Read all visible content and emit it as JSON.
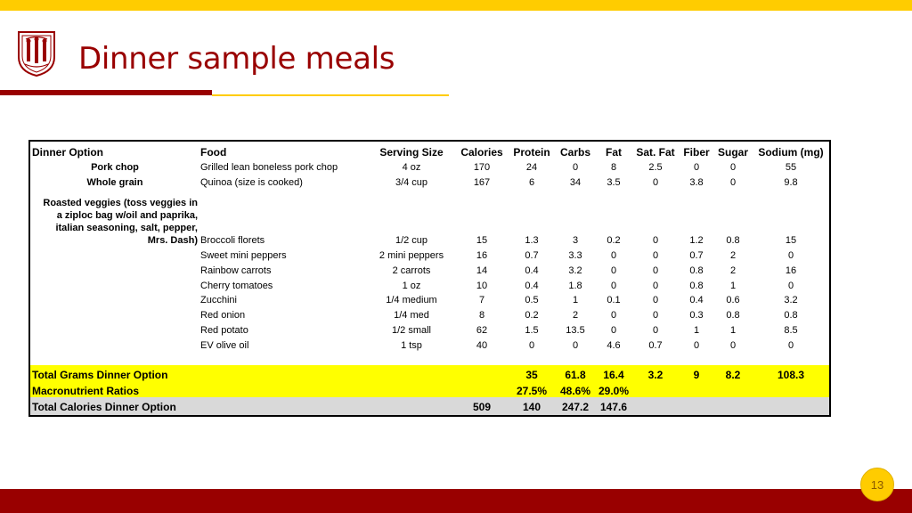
{
  "slide": {
    "title": "Dinner sample meals",
    "page_number": "13",
    "colors": {
      "cardinal": "#990000",
      "gold": "#FFCC00",
      "highlight": "#FFFF00",
      "grey": "#D9D9D9"
    },
    "logo_icon": "university-seal-icon"
  },
  "table": {
    "headers": [
      "Dinner Option",
      "Food",
      "Serving Size",
      "Calories",
      "Protein",
      "Carbs",
      "Fat",
      "Sat. Fat",
      "Fiber",
      "Sugar",
      "Sodium (mg)"
    ],
    "rows": [
      {
        "option": "Pork chop",
        "food": "Grilled lean boneless pork chop",
        "serving": "4 oz",
        "values": [
          "170",
          "24",
          "0",
          "8",
          "2.5",
          "0",
          "0",
          "55"
        ]
      },
      {
        "option": "Whole grain",
        "food": "Quinoa (size is cooked)",
        "serving": "3/4 cup",
        "values": [
          "167",
          "6",
          "34",
          "3.5",
          "0",
          "3.8",
          "0",
          "9.8"
        ]
      },
      {
        "option": "",
        "food": "Broccoli florets",
        "serving": "1/2 cup",
        "values": [
          "15",
          "1.3",
          "3",
          "0.2",
          "0",
          "1.2",
          "0.8",
          "15"
        ]
      },
      {
        "option": "",
        "food": "Sweet mini peppers",
        "serving": "2 mini peppers",
        "values": [
          "16",
          "0.7",
          "3.3",
          "0",
          "0",
          "0.7",
          "2",
          "0"
        ]
      },
      {
        "option": "",
        "food": "Rainbow carrots",
        "serving": "2 carrots",
        "values": [
          "14",
          "0.4",
          "3.2",
          "0",
          "0",
          "0.8",
          "2",
          "16"
        ]
      },
      {
        "option": "",
        "food": "Cherry tomatoes",
        "serving": "1 oz",
        "values": [
          "10",
          "0.4",
          "1.8",
          "0",
          "0",
          "0.8",
          "1",
          "0"
        ]
      },
      {
        "option": "",
        "food": "Zucchini",
        "serving": "1/4 medium",
        "values": [
          "7",
          "0.5",
          "1",
          "0.1",
          "0",
          "0.4",
          "0.6",
          "3.2"
        ]
      },
      {
        "option": "",
        "food": "Red onion",
        "serving": "1/4 med",
        "values": [
          "8",
          "0.2",
          "2",
          "0",
          "0",
          "0.3",
          "0.8",
          "0.8"
        ]
      },
      {
        "option": "",
        "food": "Red potato",
        "serving": "1/2 small",
        "values": [
          "62",
          "1.5",
          "13.5",
          "0",
          "0",
          "1",
          "1",
          "8.5"
        ]
      },
      {
        "option": "",
        "food": "EV olive oil",
        "serving": "1 tsp",
        "values": [
          "40",
          "0",
          "0",
          "4.6",
          "0.7",
          "0",
          "0",
          "0"
        ]
      }
    ],
    "veggie_note": [
      "Roasted veggies (toss veggies in",
      "a ziploc bag w/oil and paprika,",
      "italian seasoning, salt, pepper,",
      "Mrs. Dash)"
    ],
    "summary": {
      "total_grams": {
        "label": "Total Grams Dinner Option",
        "protein": "35",
        "carbs": "61.8",
        "fat": "16.4",
        "sat_fat": "3.2",
        "fiber": "9",
        "sugar": "8.2",
        "sodium": "108.3"
      },
      "macro_ratios": {
        "label": "Macronutrient Ratios",
        "protein": "27.5%",
        "carbs": "48.6%",
        "fat": "29.0%"
      },
      "total_calories": {
        "label": "Total Calories Dinner Option",
        "calories": "509",
        "protein": "140",
        "carbs": "247.2",
        "fat": "147.6"
      }
    }
  }
}
